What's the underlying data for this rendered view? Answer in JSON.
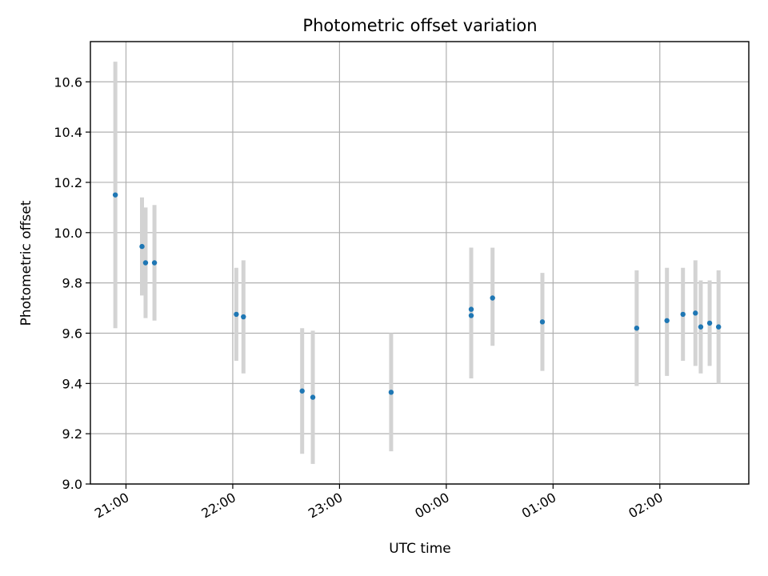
{
  "chart_data": {
    "type": "scatter",
    "title": "Photometric offset variation",
    "xlabel": "UTC time",
    "ylabel": "Photometric offset",
    "x_axis": {
      "kind": "time",
      "range": [
        "20:40",
        "02:50"
      ],
      "ticks": [
        "21:00",
        "22:00",
        "23:00",
        "00:00",
        "01:00",
        "02:00"
      ],
      "tick_label_rotation": "30deg"
    },
    "y_axis": {
      "range": [
        9.0,
        10.76
      ],
      "ticks": [
        "9.0",
        "9.2",
        "9.4",
        "9.6",
        "9.8",
        "10.0",
        "10.2",
        "10.4",
        "10.6"
      ]
    },
    "grid": true,
    "marker_color": "#1f77b4",
    "errorbar_color": "#d3d3d3",
    "points": [
      {
        "t": "20:54",
        "y": 10.15,
        "lo": 9.62,
        "hi": 10.68
      },
      {
        "t": "21:09",
        "y": 9.945,
        "lo": 9.75,
        "hi": 10.14
      },
      {
        "t": "21:11",
        "y": 9.88,
        "lo": 9.66,
        "hi": 10.1
      },
      {
        "t": "21:16",
        "y": 9.88,
        "lo": 9.65,
        "hi": 10.11
      },
      {
        "t": "22:02",
        "y": 9.675,
        "lo": 9.49,
        "hi": 9.86
      },
      {
        "t": "22:06",
        "y": 9.665,
        "lo": 9.44,
        "hi": 9.89
      },
      {
        "t": "22:39",
        "y": 9.37,
        "lo": 9.12,
        "hi": 9.62
      },
      {
        "t": "22:45",
        "y": 9.345,
        "lo": 9.08,
        "hi": 9.61
      },
      {
        "t": "23:29",
        "y": 9.365,
        "lo": 9.13,
        "hi": 9.6
      },
      {
        "t": "00:14",
        "y": 9.67,
        "lo": 9.42,
        "hi": 9.94
      },
      {
        "t": "00:14",
        "y": 9.695,
        "lo": 9.45,
        "hi": 9.94
      },
      {
        "t": "00:26",
        "y": 9.74,
        "lo": 9.55,
        "hi": 9.94
      },
      {
        "t": "00:54",
        "y": 9.645,
        "lo": 9.45,
        "hi": 9.84
      },
      {
        "t": "01:47",
        "y": 9.62,
        "lo": 9.39,
        "hi": 9.85
      },
      {
        "t": "02:04",
        "y": 9.65,
        "lo": 9.43,
        "hi": 9.86
      },
      {
        "t": "02:13",
        "y": 9.675,
        "lo": 9.49,
        "hi": 9.86
      },
      {
        "t": "02:20",
        "y": 9.68,
        "lo": 9.47,
        "hi": 9.89
      },
      {
        "t": "02:23",
        "y": 9.625,
        "lo": 9.44,
        "hi": 9.81
      },
      {
        "t": "02:28",
        "y": 9.64,
        "lo": 9.47,
        "hi": 9.81
      },
      {
        "t": "02:33",
        "y": 9.625,
        "lo": 9.4,
        "hi": 9.85
      }
    ]
  }
}
